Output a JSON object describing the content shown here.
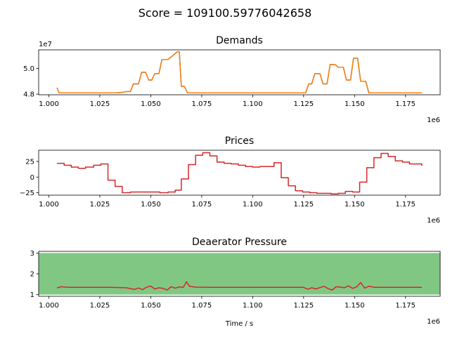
{
  "suptitle": "Score = 109100.59776042658",
  "xlabel": "Time / s",
  "colors": {
    "demand_a": "#1f77b4",
    "demand_b": "#ff7f0e",
    "line_red": "#d62728",
    "band_green": "#81c784"
  },
  "chart_data": [
    {
      "type": "line",
      "title": "Demands",
      "xlabel": "",
      "ylabel": "",
      "x_multiplier_label": "1e6",
      "y_multiplier_label": "1e7",
      "xlim": [
        995000,
        1192000
      ],
      "ylim": [
        4.795,
        5.145
      ],
      "xticks": [
        1000000,
        1025000,
        1050000,
        1075000,
        1100000,
        1125000,
        1150000,
        1175000
      ],
      "xtick_labels": [
        "1.000",
        "1.025",
        "1.050",
        "1.075",
        "1.100",
        "1.125",
        "1.150",
        "1.175"
      ],
      "yticks": [
        4.8,
        5.0
      ],
      "ytick_labels": [
        "4.8",
        "5.0"
      ],
      "grid": false,
      "series": [
        {
          "color_key": "demand_a",
          "x": [
            1004000,
            1005000,
            1033000,
            1035000,
            1036500,
            1038000,
            1040000,
            1041500,
            1044000,
            1045500,
            1047500,
            1049000,
            1050500,
            1052000,
            1054000,
            1055500,
            1057000,
            1058500,
            1063000,
            1064000,
            1065000,
            1066500,
            1068000,
            1069500,
            1126000,
            1127500,
            1129000,
            1130500,
            1133000,
            1134500,
            1136500,
            1138000,
            1140500,
            1142000,
            1144500,
            1146000,
            1148000,
            1149500,
            1151500,
            1153000,
            1155500,
            1157000,
            1183000
          ],
          "y": [
            4.85,
            4.81,
            4.81,
            4.812,
            4.815,
            4.82,
            4.82,
            4.88,
            4.88,
            4.97,
            4.97,
            4.91,
            4.91,
            4.96,
            4.96,
            5.07,
            5.07,
            5.07,
            5.13,
            5.13,
            4.86,
            4.86,
            4.81,
            4.81,
            4.81,
            4.88,
            4.88,
            4.96,
            4.96,
            4.88,
            4.88,
            5.03,
            5.03,
            5.01,
            5.01,
            4.91,
            4.91,
            5.08,
            5.08,
            4.9,
            4.9,
            4.81,
            4.81
          ]
        },
        {
          "color_key": "demand_b",
          "x": [
            1004000,
            1005000,
            1033000,
            1035000,
            1036500,
            1038000,
            1040000,
            1041500,
            1044000,
            1045500,
            1047500,
            1049000,
            1050500,
            1052000,
            1054000,
            1055500,
            1057000,
            1058500,
            1063000,
            1064000,
            1065000,
            1066500,
            1068000,
            1069500,
            1126000,
            1127500,
            1129000,
            1130500,
            1133000,
            1134500,
            1136500,
            1138000,
            1140500,
            1142000,
            1144500,
            1146000,
            1148000,
            1149500,
            1151500,
            1153000,
            1155500,
            1157000,
            1183000
          ],
          "y": [
            4.85,
            4.81,
            4.81,
            4.812,
            4.815,
            4.82,
            4.82,
            4.88,
            4.88,
            4.97,
            4.97,
            4.91,
            4.91,
            4.96,
            4.96,
            5.07,
            5.07,
            5.07,
            5.13,
            5.13,
            4.86,
            4.86,
            4.81,
            4.81,
            4.81,
            4.88,
            4.88,
            4.96,
            4.96,
            4.88,
            4.88,
            5.03,
            5.03,
            5.01,
            5.01,
            4.91,
            4.91,
            5.08,
            5.08,
            4.9,
            4.9,
            4.81,
            4.81
          ]
        }
      ]
    },
    {
      "type": "line",
      "title": "Prices",
      "xlabel": "",
      "ylabel": "",
      "x_multiplier_label": "1e6",
      "xlim": [
        995000,
        1192000
      ],
      "ylim": [
        -29,
        43
      ],
      "xticks": [
        1000000,
        1025000,
        1050000,
        1075000,
        1100000,
        1125000,
        1150000,
        1175000
      ],
      "xtick_labels": [
        "1.000",
        "1.025",
        "1.050",
        "1.075",
        "1.100",
        "1.125",
        "1.150",
        "1.175"
      ],
      "yticks": [
        25,
        0,
        -25
      ],
      "ytick_labels": [
        "25",
        "0",
        "−25"
      ],
      "grid": false,
      "step": true,
      "series": [
        {
          "color_key": "line_red",
          "x": [
            1004000,
            1007500,
            1011000,
            1014500,
            1018000,
            1022000,
            1025500,
            1029000,
            1032500,
            1036000,
            1040000,
            1047000,
            1054500,
            1058500,
            1062000,
            1065000,
            1068500,
            1072000,
            1075500,
            1079000,
            1082500,
            1086000,
            1089500,
            1093000,
            1096500,
            1100000,
            1103500,
            1107000,
            1110500,
            1114000,
            1117500,
            1121000,
            1124500,
            1128000,
            1131500,
            1135000,
            1138500,
            1142000,
            1145500,
            1149000,
            1152500,
            1156000,
            1159500,
            1163000,
            1166500,
            1170000,
            1173500,
            1177000,
            1183000
          ],
          "y": [
            22,
            19,
            16,
            14,
            16,
            19,
            21,
            -5,
            -15,
            -25,
            -24,
            -24,
            -25,
            -24,
            -21,
            -3,
            20,
            35,
            39,
            34,
            24,
            22,
            21,
            19,
            17,
            16,
            17,
            17,
            23,
            -1,
            -14,
            -22,
            -24,
            -25,
            -26,
            -26,
            -27,
            -26,
            -23,
            -24,
            -8,
            15,
            31,
            38,
            33,
            26,
            24,
            21,
            18
          ]
        }
      ]
    },
    {
      "type": "line",
      "title": "Deaerator Pressure",
      "xlabel": "Time / s",
      "ylabel": "",
      "x_multiplier_label": "1e6",
      "xlim": [
        995000,
        1192000
      ],
      "ylim": [
        0.92,
        3.08
      ],
      "xticks": [
        1000000,
        1025000,
        1050000,
        1075000,
        1100000,
        1125000,
        1150000,
        1175000
      ],
      "xtick_labels": [
        "1.000",
        "1.025",
        "1.050",
        "1.075",
        "1.100",
        "1.125",
        "1.150",
        "1.175"
      ],
      "yticks": [
        1,
        2,
        3
      ],
      "ytick_labels": [
        "1",
        "2",
        "3"
      ],
      "grid": false,
      "band": {
        "ymin": 1,
        "ymax": 3,
        "color_key": "band_green"
      },
      "series": [
        {
          "color_key": "line_red",
          "x": [
            1004000,
            1006000,
            1010000,
            1030000,
            1038000,
            1042000,
            1044000,
            1046000,
            1048000,
            1050000,
            1052000,
            1054000,
            1056000,
            1058000,
            1060000,
            1062000,
            1064000,
            1066000,
            1067500,
            1069000,
            1072000,
            1080000,
            1100000,
            1125000,
            1127000,
            1129000,
            1131000,
            1133000,
            1135000,
            1137000,
            1139000,
            1141000,
            1143000,
            1145000,
            1147000,
            1149000,
            1151000,
            1153000,
            1155000,
            1157000,
            1160000,
            1170000,
            1183000
          ],
          "y": [
            1.32,
            1.38,
            1.35,
            1.35,
            1.33,
            1.25,
            1.32,
            1.24,
            1.36,
            1.41,
            1.27,
            1.33,
            1.3,
            1.22,
            1.38,
            1.31,
            1.37,
            1.35,
            1.62,
            1.4,
            1.36,
            1.35,
            1.35,
            1.35,
            1.26,
            1.33,
            1.27,
            1.34,
            1.4,
            1.29,
            1.22,
            1.38,
            1.36,
            1.33,
            1.42,
            1.3,
            1.37,
            1.58,
            1.31,
            1.4,
            1.35,
            1.35,
            1.35
          ]
        }
      ]
    }
  ]
}
